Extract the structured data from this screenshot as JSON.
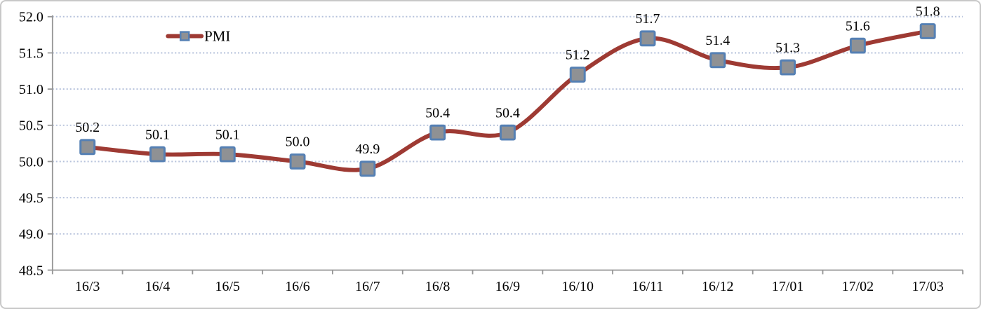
{
  "frame": {
    "background": "#ffffff",
    "border_color": "#c8c8c8"
  },
  "chart_data": {
    "type": "line",
    "title": "",
    "xlabel": "",
    "ylabel": "",
    "categories": [
      "16/3",
      "16/4",
      "16/5",
      "16/6",
      "16/7",
      "16/8",
      "16/9",
      "16/10",
      "16/11",
      "16/12",
      "17/01",
      "17/02",
      "17/03"
    ],
    "series": [
      {
        "name": "PMI",
        "values": [
          50.2,
          50.1,
          50.1,
          50.0,
          49.9,
          50.4,
          50.4,
          51.2,
          51.7,
          51.4,
          51.3,
          51.6,
          51.8
        ],
        "data_labels": [
          "50.2",
          "50.1",
          "50.1",
          "50.0",
          "49.9",
          "50.4",
          "50.4",
          "51.2",
          "51.7",
          "51.4",
          "51.3",
          "51.6",
          "51.8"
        ]
      }
    ],
    "ylim": [
      48.5,
      52.0
    ],
    "ytick_step": 0.5,
    "y_tick_labels": [
      "48.5",
      "49.0",
      "49.5",
      "50.0",
      "50.5",
      "51.0",
      "51.5",
      "52.0"
    ],
    "grid": true,
    "smooth_line": true,
    "legend": {
      "label": "PMI",
      "position": "top-left-inner"
    },
    "colors": {
      "line": "#9e3a33",
      "marker_fill": "#8f9194",
      "marker_border": "#5580b4",
      "gridline": "#b5c1db",
      "axis": "#959595",
      "text": "#000000"
    }
  }
}
